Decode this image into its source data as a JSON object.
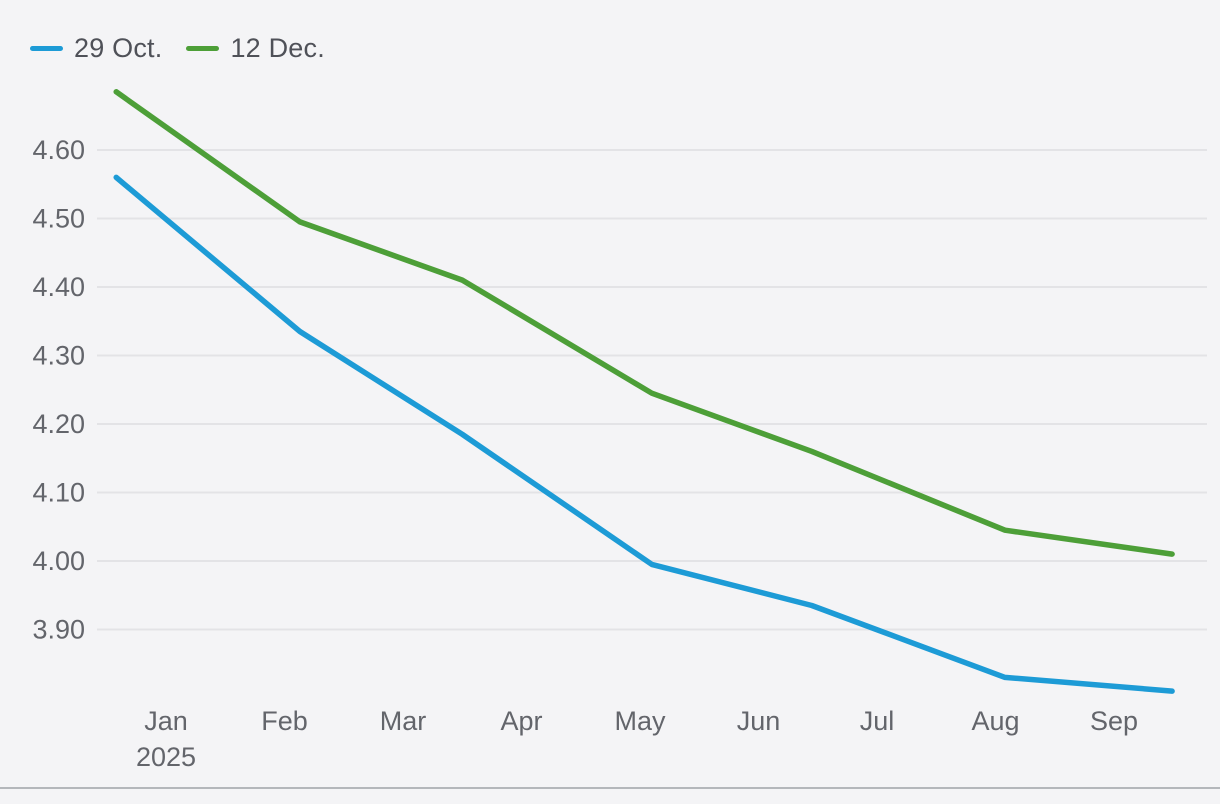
{
  "chart_data": {
    "type": "line",
    "title": "",
    "legend_position": "top-left",
    "grid": "horizontal-only",
    "background_color": "#f4f4f6",
    "gridline_color": "#e3e3e6",
    "axis_label_color": "#63656b",
    "legend_text_color": "#4f5158",
    "divider_color": "#b4b7bb",
    "legend": [
      {
        "label": "29 Oct.",
        "color": "#1d9bd6"
      },
      {
        "label": "12 Dec.",
        "color": "#4d9f38"
      }
    ],
    "x_axis": {
      "months": [
        "Jan",
        "Feb",
        "Mar",
        "Apr",
        "May",
        "Jun",
        "Jul",
        "Aug",
        "Sep"
      ],
      "year_label": "2025",
      "year_under_month": "Jan"
    },
    "y_axis": {
      "ticks": [
        "4.60",
        "4.50",
        "4.40",
        "4.30",
        "4.20",
        "4.10",
        "4.00",
        "3.90"
      ],
      "range_min": 3.78,
      "range_max": 4.7
    },
    "series": [
      {
        "name": "29 Oct.",
        "color": "#1d9bd6",
        "x_months": [
          0.08,
          1.63,
          3.0,
          4.6,
          5.95,
          7.58,
          8.99
        ],
        "values": [
          4.56,
          4.335,
          4.185,
          3.995,
          3.935,
          3.83,
          3.81
        ]
      },
      {
        "name": "12 Dec.",
        "color": "#4d9f38",
        "x_months": [
          0.08,
          1.63,
          3.0,
          4.6,
          5.95,
          7.58,
          8.99
        ],
        "values": [
          4.685,
          4.495,
          4.41,
          4.245,
          4.16,
          4.045,
          4.01
        ]
      }
    ]
  }
}
